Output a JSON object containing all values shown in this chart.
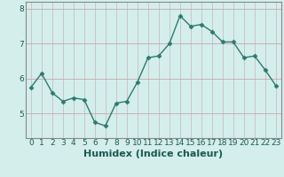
{
  "x": [
    0,
    1,
    2,
    3,
    4,
    5,
    6,
    7,
    8,
    9,
    10,
    11,
    12,
    13,
    14,
    15,
    16,
    17,
    18,
    19,
    20,
    21,
    22,
    23
  ],
  "y": [
    5.75,
    6.15,
    5.6,
    5.35,
    5.45,
    5.4,
    4.75,
    4.65,
    5.3,
    5.35,
    5.9,
    6.6,
    6.65,
    7.0,
    7.8,
    7.5,
    7.55,
    7.35,
    7.05,
    7.05,
    6.6,
    6.65,
    6.25,
    5.8
  ],
  "line_color": "#2d7a6e",
  "marker": "D",
  "marker_size": 2.5,
  "bg_color": "#d4eeec",
  "grid_color_v": "#c8c0c0",
  "grid_color_h": "#c8a8a8",
  "xlabel": "Humidex (Indice chaleur)",
  "ylim": [
    4.3,
    8.2
  ],
  "xlim": [
    -0.5,
    23.5
  ],
  "yticks": [
    5,
    6,
    7,
    8
  ],
  "xticks": [
    0,
    1,
    2,
    3,
    4,
    5,
    6,
    7,
    8,
    9,
    10,
    11,
    12,
    13,
    14,
    15,
    16,
    17,
    18,
    19,
    20,
    21,
    22,
    23
  ],
  "tick_fontsize": 6.5,
  "label_fontsize": 8,
  "line_width": 1.0,
  "spine_color": "#888888"
}
